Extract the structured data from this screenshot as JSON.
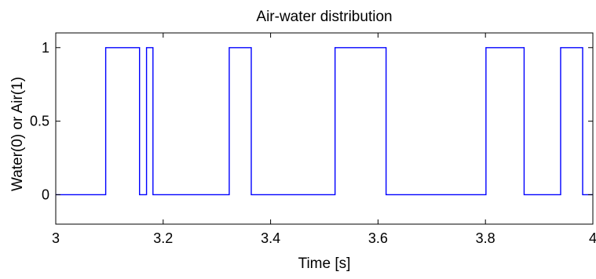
{
  "chart_data": {
    "type": "line",
    "title": "Air-water distribution",
    "xlabel": "Time [s]",
    "ylabel": "Water(0) or Air(1)",
    "xlim": [
      3,
      4
    ],
    "ylim": [
      -0.2,
      1.1
    ],
    "xticks": [
      3,
      3.2,
      3.4,
      3.6,
      3.8,
      4
    ],
    "xtick_labels": [
      "3",
      "3.2",
      "3.4",
      "3.6",
      "3.8",
      "4"
    ],
    "yticks": [
      0,
      0.5,
      1
    ],
    "ytick_labels": [
      "0",
      "0.5",
      "1"
    ],
    "grid": false,
    "line_color": "#0000ff",
    "x": [
      3.0,
      3.093,
      3.093,
      3.156,
      3.156,
      3.169,
      3.169,
      3.181,
      3.181,
      3.323,
      3.323,
      3.364,
      3.364,
      3.52,
      3.52,
      3.615,
      3.615,
      3.801,
      3.801,
      3.872,
      3.872,
      3.94,
      3.94,
      3.981,
      3.981,
      4.0
    ],
    "y": [
      0,
      0,
      1,
      1,
      0,
      0,
      1,
      1,
      0,
      0,
      1,
      1,
      0,
      0,
      1,
      1,
      0,
      0,
      1,
      1,
      0,
      0,
      1,
      1,
      0,
      0
    ]
  }
}
